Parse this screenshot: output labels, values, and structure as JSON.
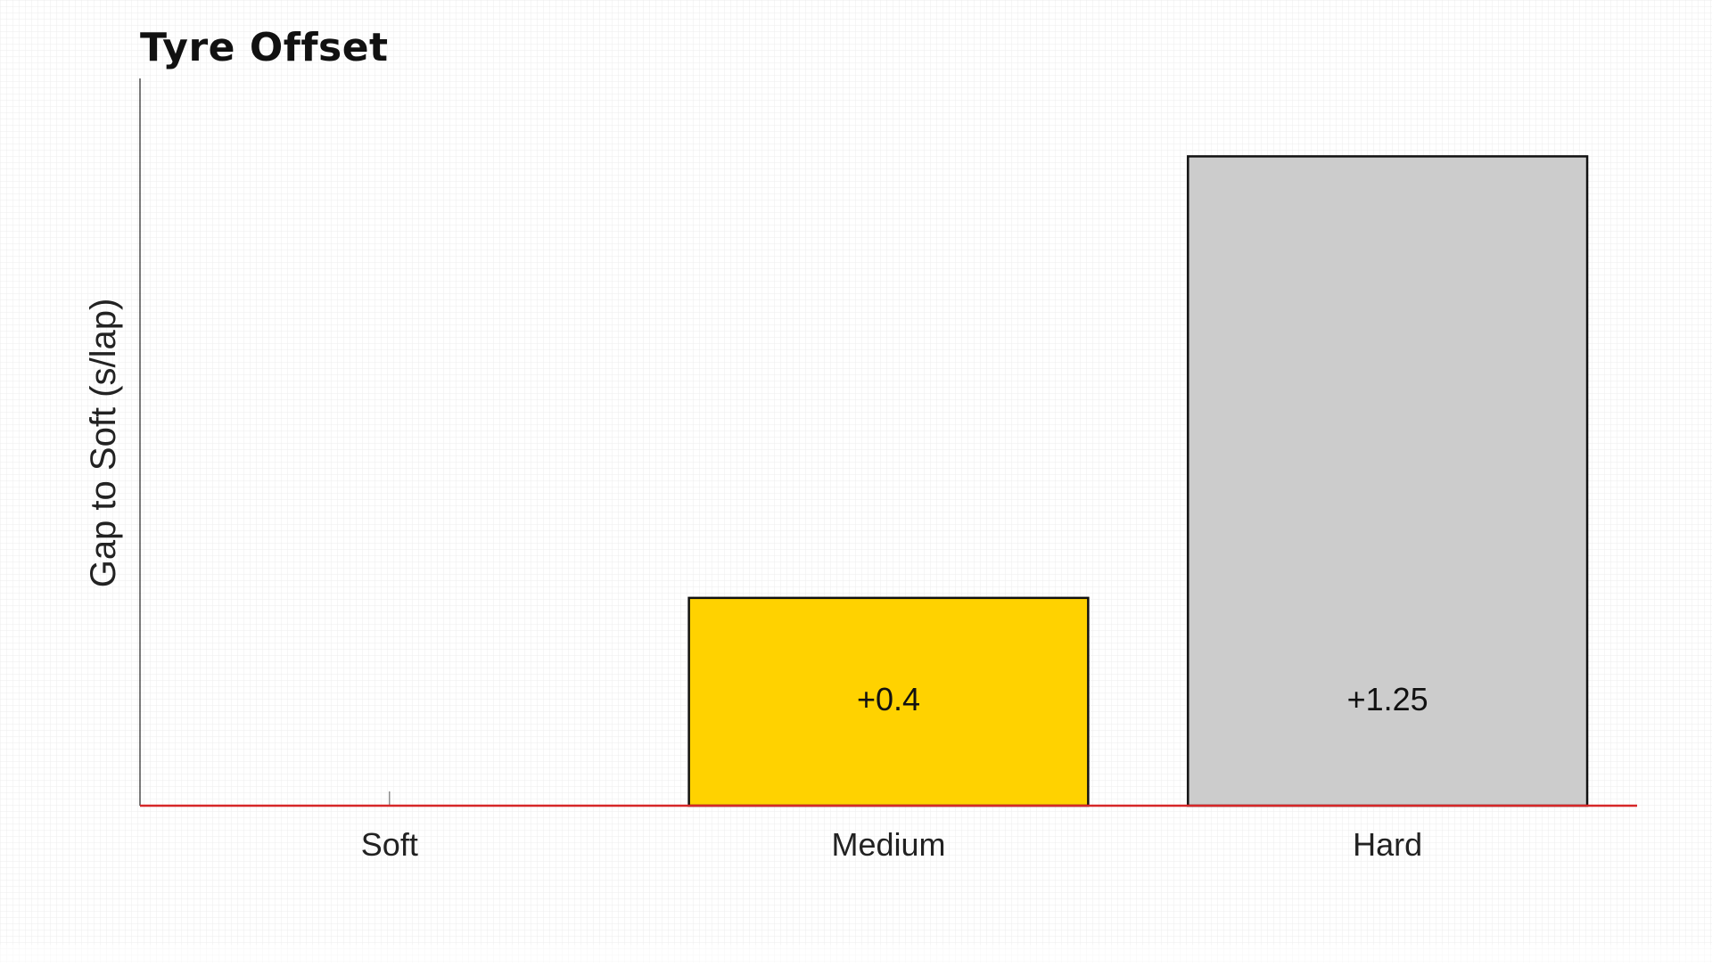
{
  "chart_data": {
    "type": "bar",
    "title": "Tyre Offset",
    "ylabel": "Gap to Soft (s/lap)",
    "xlabel": "",
    "categories": [
      "Soft",
      "Medium",
      "Hard"
    ],
    "values": [
      0,
      0.4,
      1.25
    ],
    "data_labels": [
      "",
      "+0.4",
      "+1.25"
    ],
    "colors": [
      "#FFFFFF",
      "#FFD200",
      "#CCCCCC"
    ],
    "ylim": [
      0,
      1.4
    ],
    "baseline_color": "#D62728",
    "grid": true,
    "legend": "none"
  }
}
